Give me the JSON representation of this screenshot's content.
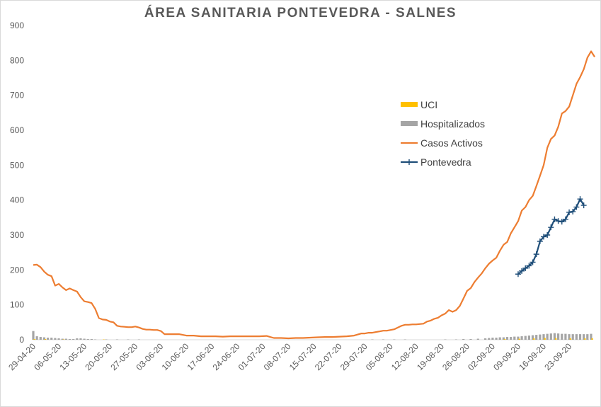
{
  "chart_data": {
    "type": "line",
    "title": "ÁREA SANITARIA  PONTEVEDRA  - SALNES",
    "xlabel": "",
    "ylabel": "",
    "ylim": [
      0,
      900
    ],
    "yticks": [
      0,
      100,
      200,
      300,
      400,
      500,
      600,
      700,
      800,
      900
    ],
    "xlim": [
      "29-04-20",
      "29-09-20"
    ],
    "xtick_labels": [
      "29-04-20",
      "06-05-20",
      "13-05-20",
      "20-05-20",
      "27-05-20",
      "03-06-20",
      "10-06-20",
      "17-06-20",
      "24-06-20",
      "01-07-20",
      "08-07-20",
      "15-07-20",
      "22-07-20",
      "29-07-20",
      "05-08-20",
      "12-08-20",
      "19-08-20",
      "26-08-20",
      "02-09-20",
      "09-09-20",
      "16-09-20",
      "23-09-20"
    ],
    "legend_position": "right",
    "grid": false,
    "colors": {
      "uci": "#ffc000",
      "hospitalizados": "#a5a5a5",
      "casos": "#ed7d31",
      "pontevedra": "#1f4e79",
      "axis": "#d9d9d9",
      "text": "#595959"
    },
    "series": [
      {
        "name": "UCI",
        "kind": "bar",
        "points": [
          [
            "29-04-20",
            2
          ],
          [
            "02-05-20",
            2
          ],
          [
            "07-05-20",
            1
          ],
          [
            "18-05-20",
            1
          ],
          [
            "05-09-20",
            2
          ],
          [
            "09-09-20",
            3
          ],
          [
            "13-09-20",
            4
          ],
          [
            "16-09-20",
            5
          ],
          [
            "19-09-20",
            5
          ],
          [
            "23-09-20",
            4
          ],
          [
            "27-09-20",
            4
          ],
          [
            "29-09-20",
            4
          ]
        ]
      },
      {
        "name": "Hospitalizados",
        "kind": "bar",
        "points": [
          [
            "29-04-20",
            25
          ],
          [
            "30-04-20",
            10
          ],
          [
            "01-05-20",
            8
          ],
          [
            "02-05-20",
            7
          ],
          [
            "03-05-20",
            6
          ],
          [
            "04-05-20",
            6
          ],
          [
            "05-05-20",
            5
          ],
          [
            "06-05-20",
            4
          ],
          [
            "07-05-20",
            3
          ],
          [
            "08-05-20",
            3
          ],
          [
            "09-05-20",
            2
          ],
          [
            "10-05-20",
            2
          ],
          [
            "11-05-20",
            4
          ],
          [
            "12-05-20",
            4
          ],
          [
            "13-05-20",
            3
          ],
          [
            "14-05-20",
            2
          ],
          [
            "15-05-20",
            2
          ],
          [
            "16-05-20",
            1
          ],
          [
            "19-05-20",
            1
          ],
          [
            "22-05-20",
            1
          ],
          [
            "25-05-20",
            1
          ],
          [
            "28-05-20",
            1
          ],
          [
            "31-07-20",
            1
          ],
          [
            "03-08-20",
            1
          ],
          [
            "06-08-20",
            1
          ],
          [
            "09-08-20",
            1
          ],
          [
            "20-08-20",
            1
          ],
          [
            "23-08-20",
            1
          ],
          [
            "25-08-20",
            2
          ],
          [
            "27-08-20",
            2
          ],
          [
            "29-08-20",
            3
          ],
          [
            "31-08-20",
            4
          ],
          [
            "01-09-20",
            5
          ],
          [
            "02-09-20",
            6
          ],
          [
            "03-09-20",
            6
          ],
          [
            "04-09-20",
            7
          ],
          [
            "05-09-20",
            7
          ],
          [
            "06-09-20",
            8
          ],
          [
            "07-09-20",
            8
          ],
          [
            "08-09-20",
            9
          ],
          [
            "09-09-20",
            9
          ],
          [
            "10-09-20",
            10
          ],
          [
            "11-09-20",
            11
          ],
          [
            "12-09-20",
            12
          ],
          [
            "13-09-20",
            13
          ],
          [
            "14-09-20",
            14
          ],
          [
            "15-09-20",
            15
          ],
          [
            "16-09-20",
            16
          ],
          [
            "17-09-20",
            17
          ],
          [
            "18-09-20",
            18
          ],
          [
            "19-09-20",
            19
          ],
          [
            "20-09-20",
            18
          ],
          [
            "21-09-20",
            17
          ],
          [
            "22-09-20",
            17
          ],
          [
            "23-09-20",
            16
          ],
          [
            "24-09-20",
            16
          ],
          [
            "25-09-20",
            16
          ],
          [
            "26-09-20",
            16
          ],
          [
            "27-09-20",
            16
          ],
          [
            "28-09-20",
            16
          ],
          [
            "29-09-20",
            17
          ]
        ]
      },
      {
        "name": "Casos Activos",
        "kind": "line",
        "points": [
          [
            "29-04-20",
            214
          ],
          [
            "30-04-20",
            215
          ],
          [
            "01-05-20",
            208
          ],
          [
            "02-05-20",
            195
          ],
          [
            "03-05-20",
            186
          ],
          [
            "04-05-20",
            182
          ],
          [
            "05-05-20",
            155
          ],
          [
            "06-05-20",
            160
          ],
          [
            "07-05-20",
            150
          ],
          [
            "08-05-20",
            142
          ],
          [
            "09-05-20",
            147
          ],
          [
            "10-05-20",
            142
          ],
          [
            "11-05-20",
            138
          ],
          [
            "12-05-20",
            122
          ],
          [
            "13-05-20",
            110
          ],
          [
            "14-05-20",
            108
          ],
          [
            "15-05-20",
            105
          ],
          [
            "16-05-20",
            88
          ],
          [
            "17-05-20",
            62
          ],
          [
            "18-05-20",
            58
          ],
          [
            "19-05-20",
            57
          ],
          [
            "20-05-20",
            52
          ],
          [
            "21-05-20",
            50
          ],
          [
            "22-05-20",
            40
          ],
          [
            "23-05-20",
            38
          ],
          [
            "24-05-20",
            37
          ],
          [
            "25-05-20",
            36
          ],
          [
            "26-05-20",
            36
          ],
          [
            "27-05-20",
            38
          ],
          [
            "28-05-20",
            35
          ],
          [
            "29-05-20",
            31
          ],
          [
            "30-05-20",
            29
          ],
          [
            "31-05-20",
            29
          ],
          [
            "01-06-20",
            28
          ],
          [
            "02-06-20",
            28
          ],
          [
            "03-06-20",
            25
          ],
          [
            "04-06-20",
            16
          ],
          [
            "05-06-20",
            16
          ],
          [
            "06-06-20",
            16
          ],
          [
            "08-06-20",
            16
          ],
          [
            "10-06-20",
            12
          ],
          [
            "12-06-20",
            12
          ],
          [
            "14-06-20",
            10
          ],
          [
            "16-06-20",
            10
          ],
          [
            "18-06-20",
            10
          ],
          [
            "20-06-20",
            9
          ],
          [
            "22-06-20",
            10
          ],
          [
            "24-06-20",
            10
          ],
          [
            "26-06-20",
            10
          ],
          [
            "28-06-20",
            10
          ],
          [
            "30-06-20",
            10
          ],
          [
            "02-07-20",
            11
          ],
          [
            "04-07-20",
            5
          ],
          [
            "06-07-20",
            5
          ],
          [
            "08-07-20",
            4
          ],
          [
            "10-07-20",
            5
          ],
          [
            "12-07-20",
            5
          ],
          [
            "14-07-20",
            6
          ],
          [
            "16-07-20",
            7
          ],
          [
            "18-07-20",
            8
          ],
          [
            "20-07-20",
            8
          ],
          [
            "22-07-20",
            9
          ],
          [
            "24-07-20",
            10
          ],
          [
            "26-07-20",
            12
          ],
          [
            "27-07-20",
            15
          ],
          [
            "28-07-20",
            18
          ],
          [
            "29-07-20",
            18
          ],
          [
            "30-07-20",
            20
          ],
          [
            "31-07-20",
            20
          ],
          [
            "01-08-20",
            22
          ],
          [
            "02-08-20",
            24
          ],
          [
            "03-08-20",
            26
          ],
          [
            "04-08-20",
            26
          ],
          [
            "05-08-20",
            28
          ],
          [
            "06-08-20",
            30
          ],
          [
            "07-08-20",
            35
          ],
          [
            "08-08-20",
            40
          ],
          [
            "09-08-20",
            43
          ],
          [
            "10-08-20",
            43
          ],
          [
            "11-08-20",
            44
          ],
          [
            "12-08-20",
            44
          ],
          [
            "13-08-20",
            45
          ],
          [
            "14-08-20",
            46
          ],
          [
            "15-08-20",
            52
          ],
          [
            "16-08-20",
            55
          ],
          [
            "17-08-20",
            60
          ],
          [
            "18-08-20",
            63
          ],
          [
            "19-08-20",
            70
          ],
          [
            "20-08-20",
            75
          ],
          [
            "21-08-20",
            85
          ],
          [
            "22-08-20",
            80
          ],
          [
            "23-08-20",
            85
          ],
          [
            "24-08-20",
            97
          ],
          [
            "25-08-20",
            118
          ],
          [
            "26-08-20",
            140
          ],
          [
            "27-08-20",
            148
          ],
          [
            "28-08-20",
            165
          ],
          [
            "29-08-20",
            178
          ],
          [
            "30-08-20",
            190
          ],
          [
            "31-08-20",
            205
          ],
          [
            "01-09-20",
            218
          ],
          [
            "02-09-20",
            227
          ],
          [
            "03-09-20",
            235
          ],
          [
            "04-09-20",
            255
          ],
          [
            "05-09-20",
            272
          ],
          [
            "06-09-20",
            280
          ],
          [
            "07-09-20",
            305
          ],
          [
            "08-09-20",
            322
          ],
          [
            "09-09-20",
            340
          ],
          [
            "10-09-20",
            370
          ],
          [
            "11-09-20",
            380
          ],
          [
            "12-09-20",
            400
          ],
          [
            "13-09-20",
            412
          ],
          [
            "14-09-20",
            440
          ],
          [
            "15-09-20",
            470
          ],
          [
            "16-09-20",
            500
          ],
          [
            "17-09-20",
            550
          ],
          [
            "18-09-20",
            575
          ],
          [
            "19-09-20",
            585
          ],
          [
            "20-09-20",
            610
          ],
          [
            "21-09-20",
            648
          ],
          [
            "22-09-20",
            655
          ],
          [
            "23-09-20",
            668
          ],
          [
            "24-09-20",
            700
          ],
          [
            "25-09-20",
            733
          ],
          [
            "26-09-20",
            752
          ],
          [
            "27-09-20",
            775
          ],
          [
            "28-09-20",
            808
          ],
          [
            "29-09-20",
            826
          ],
          [
            "30-09-20",
            810
          ]
        ]
      },
      {
        "name": "Pontevedra",
        "kind": "line-marker",
        "points": [
          [
            "09-09-20",
            188
          ],
          [
            "10-09-20",
            197
          ],
          [
            "11-09-20",
            205
          ],
          [
            "12-09-20",
            212
          ],
          [
            "13-09-20",
            222
          ],
          [
            "14-09-20",
            245
          ],
          [
            "15-09-20",
            282
          ],
          [
            "16-09-20",
            295
          ],
          [
            "17-09-20",
            300
          ],
          [
            "18-09-20",
            322
          ],
          [
            "19-09-20",
            345
          ],
          [
            "20-09-20",
            340
          ],
          [
            "21-09-20",
            338
          ],
          [
            "22-09-20",
            345
          ],
          [
            "23-09-20",
            365
          ],
          [
            "24-09-20",
            367
          ],
          [
            "25-09-20",
            380
          ],
          [
            "26-09-20",
            403
          ],
          [
            "27-09-20",
            385
          ]
        ]
      }
    ]
  }
}
